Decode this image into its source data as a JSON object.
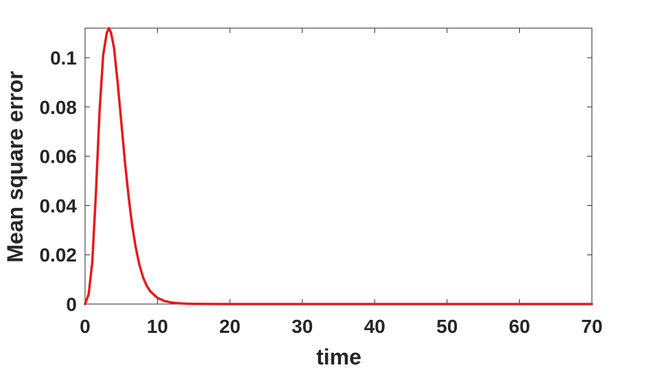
{
  "chart_data": {
    "type": "line",
    "xlabel": "time",
    "ylabel": "Mean square error",
    "xlim": [
      0,
      70
    ],
    "ylim": [
      0,
      0.112
    ],
    "xticks": [
      0,
      10,
      20,
      30,
      40,
      50,
      60,
      70
    ],
    "xtick_labels": [
      "0",
      "10",
      "20",
      "30",
      "40",
      "50",
      "60",
      "70"
    ],
    "yticks": [
      0,
      0.02,
      0.04,
      0.06,
      0.08,
      0.1
    ],
    "ytick_labels": [
      "0",
      "0.02",
      "0.04",
      "0.06",
      "0.08",
      "0.1"
    ],
    "grid": false,
    "series": [
      {
        "color": "#e41a1c",
        "x": [
          0,
          0.5,
          1,
          1.5,
          2,
          2.5,
          3,
          3.3,
          3.6,
          4,
          4.5,
          5,
          5.5,
          6,
          6.5,
          7,
          7.5,
          8,
          8.5,
          9,
          10,
          11,
          12,
          13,
          14,
          15,
          17,
          20,
          30,
          40,
          50,
          60,
          70
        ],
        "y": [
          0,
          0.004,
          0.017,
          0.045,
          0.078,
          0.101,
          0.11,
          0.112,
          0.11,
          0.104,
          0.09,
          0.074,
          0.058,
          0.044,
          0.032,
          0.023,
          0.016,
          0.011,
          0.0075,
          0.0052,
          0.0025,
          0.0012,
          0.0006,
          0.0003,
          0.00015,
          8e-05,
          2e-05,
          0,
          0,
          0,
          0,
          0,
          0
        ]
      }
    ]
  }
}
